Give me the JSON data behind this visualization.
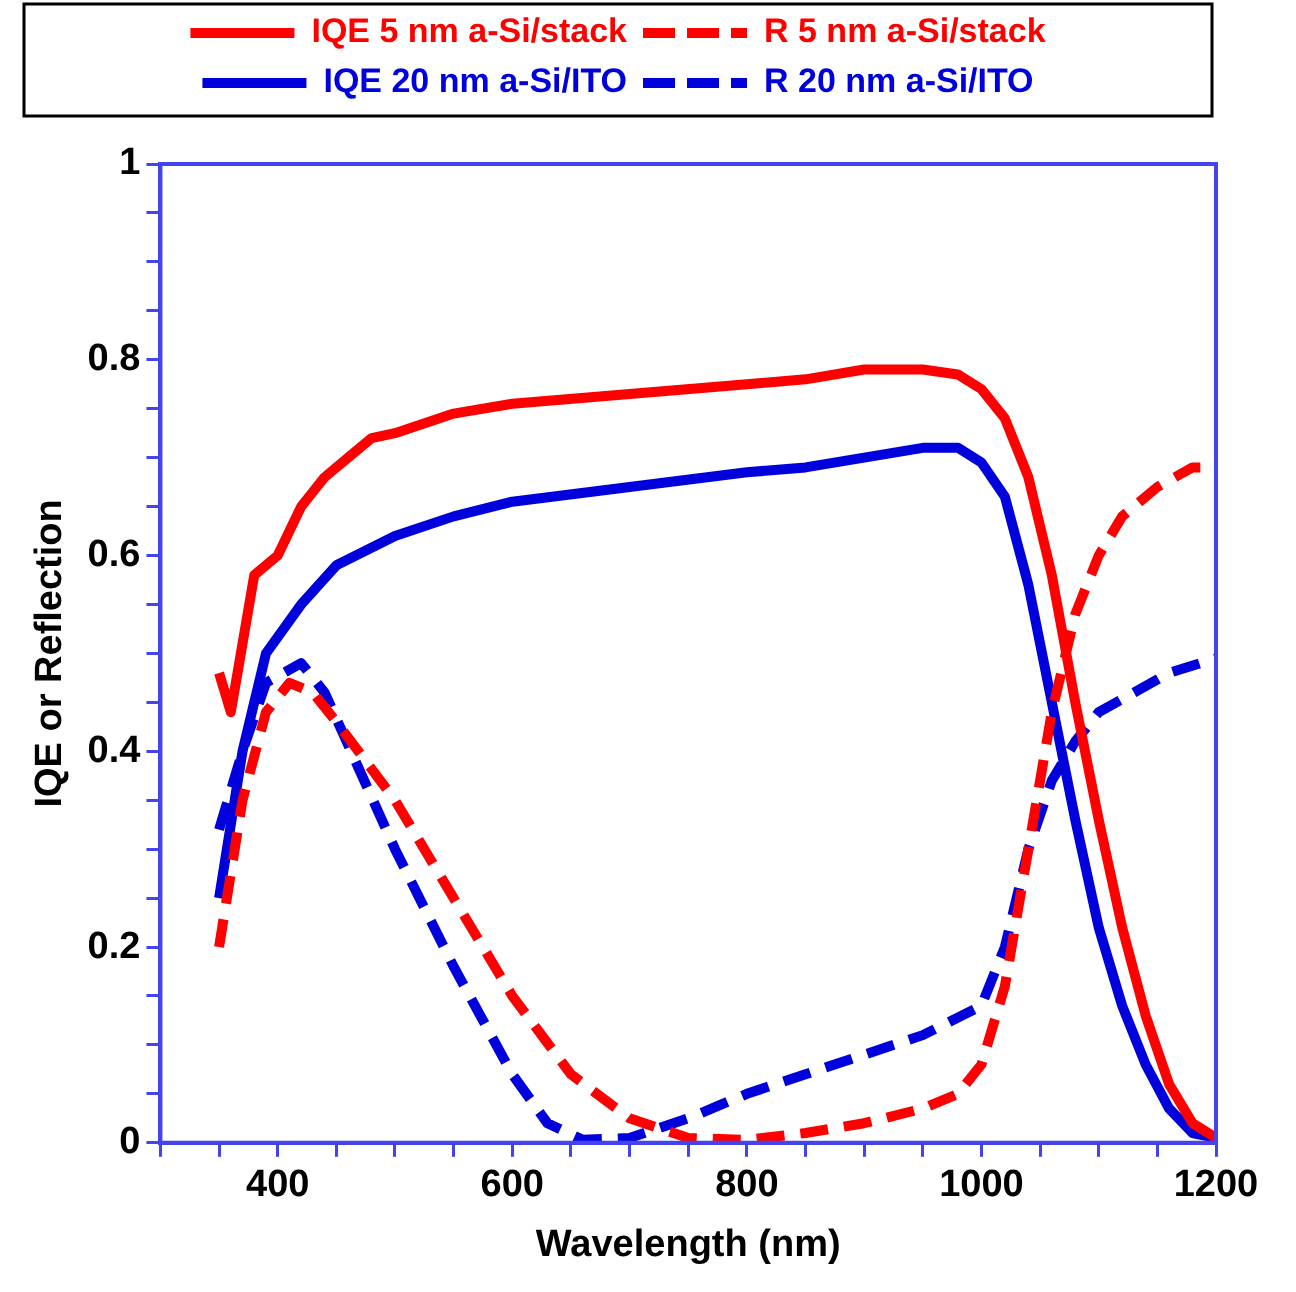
{
  "chart_data": {
    "type": "line",
    "xlabel": "Wavelength (nm)",
    "ylabel": "IQE or Reflection",
    "xlim": [
      300,
      1200
    ],
    "ylim": [
      0,
      1
    ],
    "xticks": [
      {
        "value": 300,
        "label": null
      },
      {
        "value": 350,
        "label": null
      },
      400,
      {
        "value": 450,
        "label": null
      },
      {
        "value": 500,
        "label": null
      },
      {
        "value": 550,
        "label": null
      },
      600,
      {
        "value": 650,
        "label": null
      },
      {
        "value": 700,
        "label": null
      },
      {
        "value": 750,
        "label": null
      },
      800,
      {
        "value": 850,
        "label": null
      },
      {
        "value": 900,
        "label": null
      },
      {
        "value": 950,
        "label": null
      },
      1000,
      {
        "value": 1050,
        "label": null
      },
      {
        "value": 1100,
        "label": null
      },
      {
        "value": 1150,
        "label": null
      },
      1200
    ],
    "yticks": [
      0,
      {
        "value": 0.05,
        "label": null
      },
      {
        "value": 0.1,
        "label": null
      },
      {
        "value": 0.15,
        "label": null
      },
      0.2,
      {
        "value": 0.25,
        "label": null
      },
      {
        "value": 0.3,
        "label": null
      },
      {
        "value": 0.35,
        "label": null
      },
      0.4,
      {
        "value": 0.45,
        "label": null
      },
      {
        "value": 0.5,
        "label": null
      },
      {
        "value": 0.55,
        "label": null
      },
      0.6,
      {
        "value": 0.65,
        "label": null
      },
      {
        "value": 0.7,
        "label": null
      },
      {
        "value": 0.75,
        "label": null
      },
      0.8,
      {
        "value": 0.85,
        "label": null
      },
      {
        "value": 0.9,
        "label": null
      },
      {
        "value": 0.95,
        "label": null
      },
      1
    ],
    "grid": false,
    "legend": "top",
    "marker": "none",
    "series": [
      {
        "name": "IQE 5 nm a-Si/stack",
        "color": "#ff0000",
        "line_style": "solid",
        "x": [
          350,
          360,
          380,
          400,
          420,
          440,
          460,
          480,
          500,
          550,
          600,
          700,
          800,
          850,
          900,
          950,
          980,
          1000,
          1020,
          1040,
          1060,
          1080,
          1100,
          1120,
          1140,
          1160,
          1180,
          1200
        ],
        "values": [
          0.48,
          0.44,
          0.58,
          0.6,
          0.65,
          0.68,
          0.7,
          0.72,
          0.725,
          0.745,
          0.755,
          0.765,
          0.775,
          0.78,
          0.79,
          0.79,
          0.785,
          0.77,
          0.74,
          0.68,
          0.58,
          0.45,
          0.33,
          0.22,
          0.13,
          0.06,
          0.02,
          0.005
        ]
      },
      {
        "name": "R 5 nm a-Si/stack",
        "color": "#ff0000",
        "line_style": "dashed",
        "x": [
          350,
          370,
          390,
          410,
          430,
          450,
          500,
          550,
          600,
          650,
          700,
          750,
          800,
          850,
          900,
          950,
          980,
          1000,
          1020,
          1040,
          1060,
          1080,
          1100,
          1120,
          1150,
          1180,
          1200
        ],
        "values": [
          0.2,
          0.35,
          0.44,
          0.47,
          0.46,
          0.43,
          0.35,
          0.25,
          0.15,
          0.07,
          0.025,
          0.005,
          0.003,
          0.01,
          0.02,
          0.035,
          0.05,
          0.08,
          0.16,
          0.3,
          0.44,
          0.54,
          0.6,
          0.64,
          0.67,
          0.69,
          0.69
        ]
      },
      {
        "name": "IQE 20 nm a-Si/ITO",
        "color": "#0000dd",
        "line_style": "solid",
        "x": [
          350,
          370,
          390,
          420,
          450,
          500,
          550,
          600,
          700,
          800,
          850,
          900,
          950,
          980,
          1000,
          1020,
          1040,
          1060,
          1080,
          1100,
          1120,
          1140,
          1160,
          1180,
          1200
        ],
        "values": [
          0.25,
          0.4,
          0.5,
          0.55,
          0.59,
          0.62,
          0.64,
          0.655,
          0.67,
          0.685,
          0.69,
          0.7,
          0.71,
          0.71,
          0.695,
          0.66,
          0.57,
          0.45,
          0.33,
          0.22,
          0.14,
          0.08,
          0.035,
          0.01,
          0.005
        ]
      },
      {
        "name": "R 20 nm a-Si/ITO",
        "color": "#0000dd",
        "line_style": "dashed",
        "x": [
          350,
          370,
          390,
          420,
          440,
          470,
          500,
          550,
          600,
          630,
          660,
          700,
          750,
          800,
          850,
          900,
          950,
          1000,
          1020,
          1040,
          1060,
          1080,
          1100,
          1130,
          1160,
          1200
        ],
        "values": [
          0.32,
          0.4,
          0.47,
          0.49,
          0.46,
          0.38,
          0.3,
          0.18,
          0.07,
          0.02,
          0.003,
          0.005,
          0.025,
          0.05,
          0.07,
          0.09,
          0.11,
          0.14,
          0.2,
          0.3,
          0.37,
          0.41,
          0.44,
          0.46,
          0.48,
          0.495
        ]
      }
    ]
  }
}
